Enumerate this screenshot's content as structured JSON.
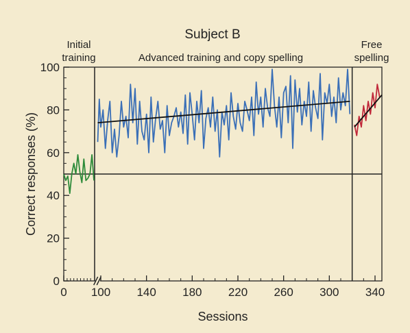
{
  "chart_data": {
    "type": "line",
    "title": "Subject B",
    "xlabel": "Sessions",
    "ylabel": "Correct responses (%)",
    "ylim": [
      0,
      100
    ],
    "grid": false,
    "axis_break": "between 92 and 100 on the x axis",
    "x_ticks": [
      {
        "value": 0,
        "label": "0"
      },
      {
        "value": 100,
        "label": "100"
      },
      {
        "value": 140,
        "label": "140"
      },
      {
        "value": 180,
        "label": "180"
      },
      {
        "value": 220,
        "label": "220"
      },
      {
        "value": 260,
        "label": "260"
      },
      {
        "value": 300,
        "label": "300"
      },
      {
        "value": 340,
        "label": "340"
      }
    ],
    "y_ticks": [
      0,
      20,
      40,
      60,
      80,
      100
    ],
    "section_boundaries": [
      92,
      320
    ],
    "sections": [
      {
        "label_lines": [
          "Initial",
          "training"
        ]
      },
      {
        "label_lines": [
          "Advanced training and copy spelling"
        ]
      },
      {
        "label_lines": [
          "Free",
          "spelling"
        ]
      }
    ],
    "chance_level": 50,
    "series": [
      {
        "color": "#2e8b3a",
        "x": [
          0,
          6,
          12,
          18,
          24,
          30,
          36,
          42,
          48,
          54,
          60,
          66,
          72,
          78,
          84,
          90
        ],
        "y": [
          50,
          47,
          49,
          41,
          50,
          55,
          50,
          59,
          51,
          46,
          57,
          47,
          48,
          50,
          59,
          47
        ]
      },
      {
        "color": "#3a6fb7",
        "x": [
          96,
          98,
          100,
          102,
          104,
          106,
          108,
          110,
          112,
          114,
          116,
          118,
          120,
          122,
          124,
          126,
          128,
          130,
          132,
          134,
          136,
          138,
          140,
          142,
          144,
          146,
          148,
          150,
          152,
          154,
          156,
          158,
          160,
          162,
          164,
          166,
          168,
          170,
          172,
          174,
          176,
          178,
          180,
          182,
          184,
          186,
          188,
          190,
          192,
          194,
          196,
          198,
          200,
          202,
          204,
          206,
          208,
          210,
          212,
          214,
          216,
          218,
          220,
          222,
          224,
          226,
          228,
          230,
          232,
          234,
          236,
          238,
          240,
          242,
          244,
          246,
          248,
          250,
          252,
          254,
          256,
          258,
          260,
          262,
          264,
          266,
          268,
          270,
          272,
          274,
          276,
          278,
          280,
          282,
          284,
          286,
          288,
          290,
          292,
          294,
          296,
          298,
          300,
          302,
          304,
          306,
          308,
          310,
          312,
          314,
          316,
          318
        ],
        "y": [
          65,
          85,
          72,
          80,
          62,
          75,
          84,
          60,
          71,
          58,
          68,
          84,
          72,
          77,
          67,
          92,
          74,
          90,
          64,
          84,
          70,
          66,
          78,
          60,
          86,
          65,
          76,
          84,
          71,
          75,
          60,
          82,
          68,
          74,
          77,
          81,
          72,
          79,
          69,
          87,
          64,
          88,
          78,
          66,
          84,
          74,
          89,
          62,
          76,
          81,
          72,
          86,
          70,
          80,
          58,
          79,
          73,
          82,
          66,
          88,
          77,
          71,
          83,
          74,
          70,
          84,
          80,
          75,
          86,
          68,
          93,
          78,
          86,
          72,
          90,
          81,
          77,
          99,
          82,
          72,
          86,
          67,
          88,
          91,
          74,
          96,
          62,
          94,
          79,
          90,
          73,
          84,
          77,
          93,
          70,
          89,
          81,
          76,
          97,
          66,
          88,
          83,
          92,
          77,
          86,
          74,
          95,
          80,
          88,
          82,
          99,
          78
        ]
      },
      {
        "color": "#c0283a",
        "x": [
          322,
          324,
          326,
          328,
          330,
          332,
          334,
          336,
          338,
          340,
          342,
          344
        ],
        "y": [
          73,
          68,
          77,
          72,
          82,
          75,
          84,
          78,
          88,
          81,
          92,
          86
        ]
      }
    ],
    "trend_lines": [
      {
        "x": [
          96,
          318
        ],
        "y": [
          74,
          84
        ]
      },
      {
        "x": [
          322,
          346
        ],
        "y": [
          72,
          87
        ]
      }
    ]
  }
}
